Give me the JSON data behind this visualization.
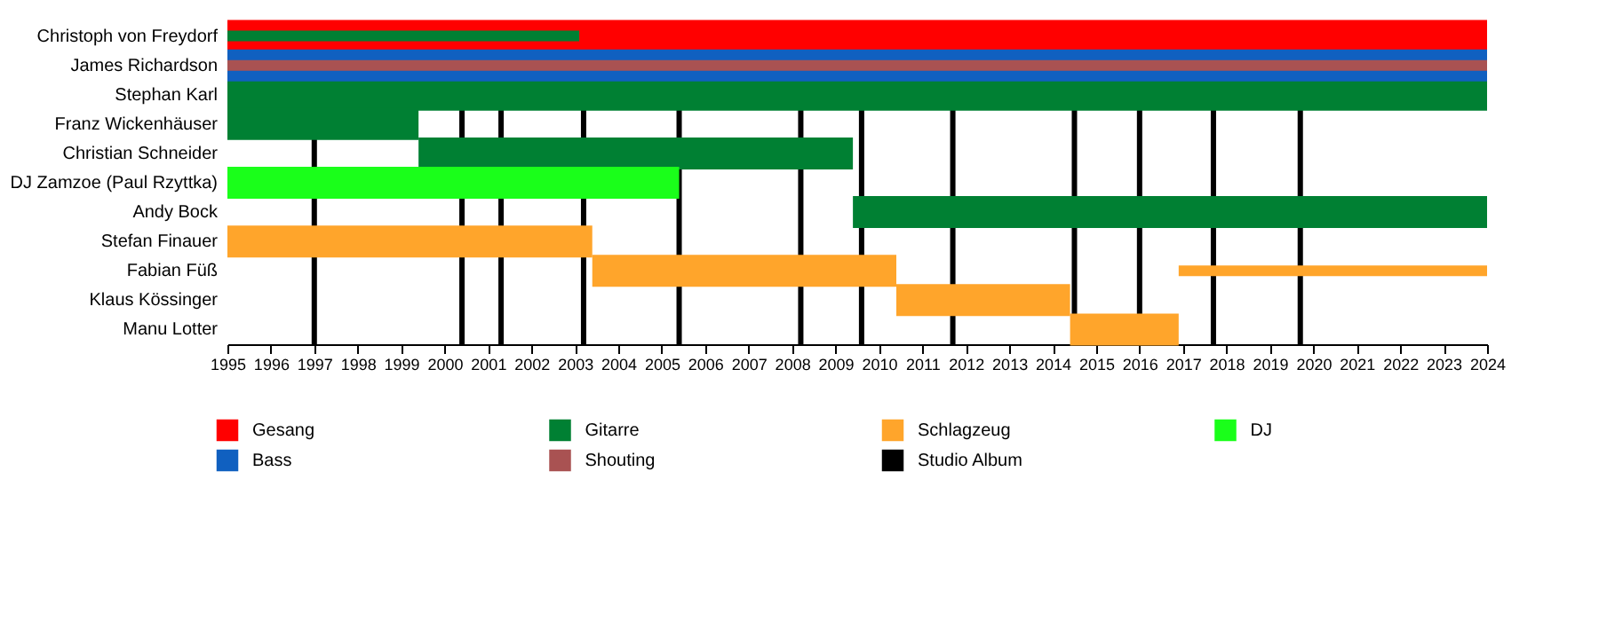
{
  "chart_data": {
    "type": "bar",
    "orientation": "horizontal",
    "legend": "bottom",
    "categories": [
      "Christoph von Freydorf",
      "James Richardson",
      "Stephan Karl",
      "Franz Wickenhäuser",
      "Christian Schneider",
      "DJ Zamzoe (Paul Rzyttka)",
      "Andy Bock",
      "Stefan Finauer",
      "Fabian Füß",
      "Klaus Kössinger",
      "Manu Lotter"
    ],
    "xlim": [
      1995,
      2024
    ],
    "xticks": [
      1995,
      1996,
      1997,
      1998,
      1999,
      2000,
      2001,
      2002,
      2003,
      2004,
      2005,
      2006,
      2007,
      2008,
      2009,
      2010,
      2011,
      2012,
      2013,
      2014,
      2015,
      2016,
      2017,
      2018,
      2019,
      2020,
      2021,
      2022,
      2023,
      2024
    ],
    "series": [
      {
        "name": "Gesang",
        "color": "#ff0000",
        "base": [
          1995,
          null,
          null,
          null,
          null,
          null,
          null,
          null,
          null,
          null,
          null
        ],
        "values": [
          29,
          null,
          null,
          null,
          null,
          null,
          null,
          null,
          null,
          null,
          null
        ]
      },
      {
        "name": "Gitarre",
        "color": "#008033",
        "base": [
          1995,
          null,
          1995,
          1995,
          1999.4,
          null,
          2009.4,
          null,
          null,
          null,
          null
        ],
        "values": [
          8.1,
          null,
          29,
          4.4,
          10.0,
          null,
          14.6,
          null,
          null,
          null,
          null
        ]
      },
      {
        "name": "Schlagzeug",
        "color": "#ffa52b",
        "base": [
          null,
          null,
          null,
          null,
          null,
          null,
          null,
          1995,
          2003.4,
          2010.4,
          2014.4
        ],
        "values": [
          null,
          null,
          null,
          null,
          null,
          null,
          null,
          8.4,
          7.0,
          4.0,
          2.5
        ]
      },
      {
        "name": "DJ",
        "color": "#1aff1a",
        "base": [
          null,
          null,
          null,
          null,
          null,
          1995,
          null,
          null,
          null,
          null,
          null
        ],
        "values": [
          null,
          null,
          null,
          null,
          null,
          10.4,
          null,
          null,
          null,
          null,
          null
        ]
      },
      {
        "name": "Bass",
        "color": "#1060c0",
        "base": [
          null,
          1995,
          null,
          null,
          null,
          null,
          null,
          null,
          null,
          null,
          null
        ],
        "values": [
          null,
          29,
          null,
          null,
          null,
          null,
          null,
          null,
          null,
          null,
          null
        ]
      },
      {
        "name": "Shouting",
        "color": "#a95252",
        "base": [
          null,
          1995,
          null,
          null,
          null,
          null,
          null,
          null,
          null,
          null,
          null
        ],
        "values": [
          null,
          29,
          null,
          null,
          null,
          null,
          null,
          null,
          null,
          null,
          null
        ]
      },
      {
        "color": "#ffa52b",
        "base": [
          null,
          null,
          null,
          null,
          null,
          null,
          null,
          null,
          2016.9,
          null,
          null
        ],
        "values": [
          null,
          null,
          null,
          null,
          null,
          null,
          null,
          null,
          7.1,
          null,
          null
        ]
      }
    ],
    "ref_lines": [
      {
        "axis": "x",
        "value": 1997.0,
        "label": "Studio Album",
        "color": "#000000"
      },
      {
        "axis": "x",
        "value": 2000.4,
        "color": "#000000"
      },
      {
        "axis": "x",
        "value": 2001.3,
        "color": "#000000"
      },
      {
        "axis": "x",
        "value": 2003.2,
        "color": "#000000"
      },
      {
        "axis": "x",
        "value": 2005.4,
        "color": "#000000"
      },
      {
        "axis": "x",
        "value": 2008.2,
        "color": "#000000"
      },
      {
        "axis": "x",
        "value": 2009.6,
        "color": "#000000"
      },
      {
        "axis": "x",
        "value": 2011.7,
        "color": "#000000"
      },
      {
        "axis": "x",
        "value": 2014.5,
        "color": "#000000"
      },
      {
        "axis": "x",
        "value": 2016.0,
        "color": "#000000"
      },
      {
        "axis": "x",
        "value": 2017.7,
        "color": "#000000"
      },
      {
        "axis": "x",
        "value": 2019.7,
        "color": "#000000"
      }
    ]
  }
}
